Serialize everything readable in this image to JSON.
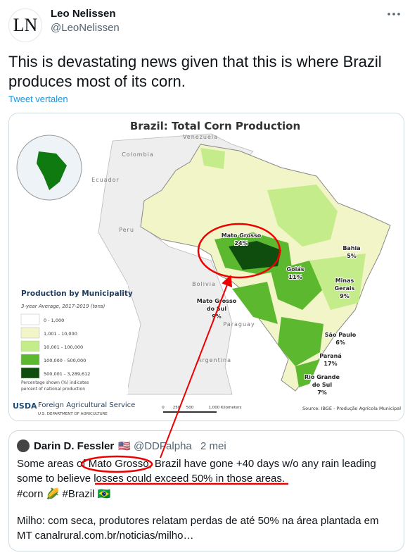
{
  "author": {
    "initials": "LN",
    "name": "Leo Nelissen",
    "handle": "@LeoNelissen"
  },
  "tweet": {
    "lines": [
      "This is devastating news given that this is where Brazil",
      "produces most of its corn."
    ],
    "translate": "Tweet vertalen"
  },
  "map": {
    "title": "Brazil: Total Corn Production",
    "countries": [
      "Venezuela",
      "Colombia",
      "Ecuador",
      "Peru",
      "Bolivia",
      "Paraguay",
      "Argentina"
    ],
    "states": [
      {
        "lines": [
          "Mato Grosso",
          "24%"
        ]
      },
      {
        "lines": [
          "Bahia",
          "5%"
        ]
      },
      {
        "lines": [
          "Goiás",
          "11%"
        ]
      },
      {
        "lines": [
          "Minas",
          "Gerais",
          "9%"
        ]
      },
      {
        "lines": [
          "Mato Grosso",
          "do Sul",
          "9%"
        ]
      },
      {
        "lines": [
          "São Paulo",
          "6%"
        ]
      },
      {
        "lines": [
          "Paraná",
          "17%"
        ]
      },
      {
        "lines": [
          "Rio Grande",
          "do Sul",
          "7%"
        ]
      }
    ],
    "legend": {
      "title": "Production by Municipality",
      "subtitle": "3-year Average, 2017-2019 (tons)",
      "items": [
        "0 - 1,000",
        "1,001 - 10,000",
        "10,001 - 100,000",
        "100,000 - 500,000",
        "500,001 - 3,289,612"
      ],
      "note": [
        "Percentage shown (%) indicates",
        "percent of national production"
      ]
    },
    "agency": {
      "logo": "USDA",
      "name": "Foreign Agricultural Service",
      "dept": "U.S. DEPARTMENT OF AGRICULTURE"
    },
    "scale": [
      "0",
      "250",
      "500",
      "1,000 Kilometers"
    ],
    "source": "Source: IBGE - Produção Agrícola Municipal"
  },
  "quote": {
    "name": "Darin D. Fessler",
    "flag": "🇺🇸",
    "handle": "@DDFalpha",
    "date": "2 mei",
    "lines": [
      "Some areas of Mato Grosso, Brazil have gone +40 days w/o any rain leading",
      "some to believe losses could exceed 50% in those areas.",
      "#corn 🌽 #Brazil 🇧🇷",
      "Milho: com seca, produtores relatam perdas de até 50% na área plantada em",
      "MT canalrural.com.br/noticias/milho…"
    ]
  }
}
